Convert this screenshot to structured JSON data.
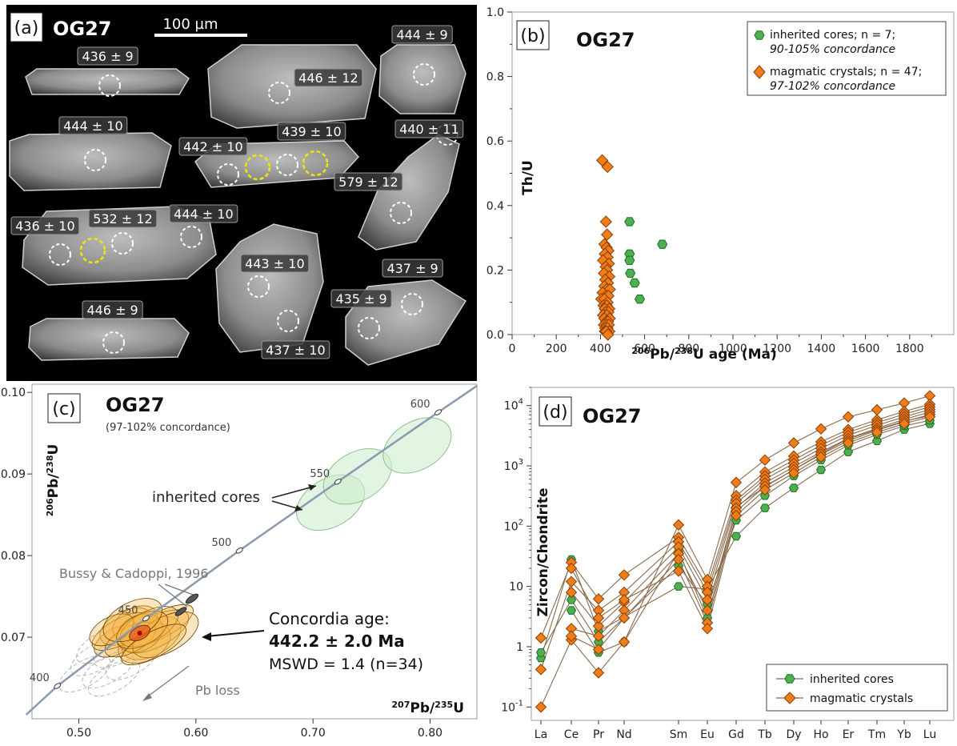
{
  "figure": {
    "panel_a": {
      "label": "(a)",
      "sample": "OG27",
      "scale_bar": "100 µm",
      "spot_labels": [
        "436 ± 9",
        "446 ± 12",
        "444 ± 9",
        "444 ± 10",
        "442 ± 10",
        "439 ± 10",
        "440 ± 11",
        "579 ± 12",
        "436 ± 10",
        "532 ± 12",
        "444 ± 10",
        "443 ± 10",
        "437 ± 9",
        "446 ± 9",
        "435 ± 9",
        "437 ± 10"
      ]
    },
    "panel_b": {
      "label": "(b)",
      "sample": "OG27",
      "legend": {
        "inherited_line1": "inherited cores; n = 7;",
        "inherited_line2": "90-105% concordance",
        "magmatic_line1": "magmatic crystals; n = 47;",
        "magmatic_line2": "97-102% concordance"
      }
    },
    "panel_c": {
      "label": "(c)",
      "sample": "OG27",
      "subtitle": "(97-102% concordance)",
      "annot_inherited": "inherited cores",
      "annot_bussy": "Bussy & Cadoppi, 1996",
      "concordia_title": "Concordia age:",
      "concordia_age": "442.2 ± 2.0 Ma",
      "mswd": "MSWD = 1.4 (n=34)",
      "pb_loss": "Pb loss"
    },
    "panel_d": {
      "label": "(d)",
      "sample": "OG27",
      "legend": {
        "inherited": "inherited cores",
        "magmatic": "magmatic crystals"
      }
    },
    "colors": {
      "inherited": "#4caf50",
      "magmatic": "#ef7d1a",
      "concordia": "#8a9bb0",
      "ree_line": "#8a6a4a"
    }
  },
  "chart_data": [
    {
      "type": "scatter",
      "panel": "b",
      "xlabel": "206Pb/238U age (Ma)",
      "ylabel": "Th/U",
      "xlim": [
        0,
        2000
      ],
      "ylim": [
        0,
        1.0
      ],
      "xticks": [
        0,
        200,
        400,
        600,
        800,
        1000,
        1200,
        1400,
        1600,
        1800
      ],
      "yticks": [
        0.0,
        0.2,
        0.4,
        0.6,
        0.8,
        1.0
      ],
      "series": [
        {
          "name": "inherited cores",
          "marker": "hexagon",
          "points": [
            [
              532,
              0.35
            ],
            [
              532,
              0.25
            ],
            [
              532,
              0.23
            ],
            [
              535,
              0.19
            ],
            [
              555,
              0.16
            ],
            [
              578,
              0.11
            ],
            [
              680,
              0.28
            ]
          ]
        },
        {
          "name": "magmatic crystals",
          "marker": "diamond",
          "points": [
            [
              408,
              0.54
            ],
            [
              432,
              0.52
            ],
            [
              425,
              0.35
            ],
            [
              430,
              0.31
            ],
            [
              418,
              0.28
            ],
            [
              428,
              0.27
            ],
            [
              436,
              0.26
            ],
            [
              420,
              0.25
            ],
            [
              432,
              0.24
            ],
            [
              412,
              0.23
            ],
            [
              438,
              0.22
            ],
            [
              424,
              0.21
            ],
            [
              430,
              0.2
            ],
            [
              416,
              0.19
            ],
            [
              440,
              0.18
            ],
            [
              422,
              0.17
            ],
            [
              434,
              0.16
            ],
            [
              418,
              0.15
            ],
            [
              428,
              0.14
            ],
            [
              442,
              0.14
            ],
            [
              410,
              0.13
            ],
            [
              426,
              0.12
            ],
            [
              436,
              0.12
            ],
            [
              404,
              0.11
            ],
            [
              418,
              0.11
            ],
            [
              432,
              0.1
            ],
            [
              414,
              0.09
            ],
            [
              428,
              0.09
            ],
            [
              440,
              0.08
            ],
            [
              420,
              0.08
            ],
            [
              424,
              0.07
            ],
            [
              436,
              0.07
            ],
            [
              412,
              0.06
            ],
            [
              430,
              0.06
            ],
            [
              418,
              0.05
            ],
            [
              442,
              0.05
            ],
            [
              426,
              0.04
            ],
            [
              434,
              0.04
            ],
            [
              416,
              0.03
            ],
            [
              428,
              0.03
            ],
            [
              438,
              0.03
            ],
            [
              422,
              0.02
            ],
            [
              432,
              0.02
            ],
            [
              420,
              0.01
            ],
            [
              440,
              0.01
            ],
            [
              426,
              0.01
            ],
            [
              434,
              0.0
            ]
          ]
        }
      ]
    },
    {
      "type": "scatter",
      "panel": "c",
      "xlabel": "207Pb/235U",
      "ylabel": "206Pb/238U",
      "xlim": [
        0.46,
        0.84
      ],
      "ylim": [
        0.06,
        0.101
      ],
      "xticks": [
        0.5,
        0.6,
        0.7,
        0.8
      ],
      "yticks": [
        0.07,
        0.08,
        0.09,
        0.1
      ],
      "concordia_ages": [
        400,
        450,
        500,
        550,
        600
      ],
      "concordia_points": [
        [
          0.4817,
          0.06402
        ],
        [
          0.5574,
          0.0723
        ],
        [
          0.6372,
          0.08062
        ],
        [
          0.7212,
          0.08905
        ],
        [
          0.8069,
          0.09756
        ]
      ],
      "inherited_ellipses": [
        [
          0.715,
          0.0865
        ],
        [
          0.738,
          0.0897
        ],
        [
          0.789,
          0.0935
        ]
      ]
    },
    {
      "type": "line",
      "panel": "d",
      "xlabel": "",
      "ylabel": "Zircon/Chondrite",
      "yscale": "log",
      "ylim": [
        0.1,
        20000
      ],
      "yticks": [
        "10^-1",
        "1",
        "10",
        "10^2",
        "10^3",
        "10^4"
      ],
      "categories": [
        "La",
        "Ce",
        "Pr",
        "Nd",
        "Sm",
        "Eu",
        "Gd",
        "Tb",
        "Dy",
        "Ho",
        "Er",
        "Tm",
        "Yb",
        "Lu"
      ],
      "series": [
        {
          "name": "inherited cores",
          "values": [
            0.65,
            28,
            1.8,
            null,
            10,
            9,
            68,
            200,
            430,
            860,
            1700,
            2600,
            4000,
            5000
          ]
        },
        {
          "name": "inherited cores",
          "values": [
            0.8,
            6,
            1.2,
            null,
            22,
            5,
            125,
            320,
            680,
            1250,
            2200,
            3300,
            4600,
            5700
          ]
        },
        {
          "name": "inherited cores",
          "values": [
            null,
            4,
            0.8,
            1.2,
            38,
            3,
            210,
            450,
            860,
            1600,
            2800,
            4000,
            5500,
            6800
          ]
        },
        {
          "name": "magmatic crystals",
          "values": [
            0.1,
            1.3,
            0.37,
            1.2,
            105,
            13,
            530,
            1250,
            2400,
            4100,
            6500,
            8500,
            11000,
            14500
          ]
        },
        {
          "name": "magmatic crystals",
          "values": [
            1.4,
            25,
            6.2,
            15.5,
            65,
            10,
            320,
            790,
            1450,
            2500,
            4000,
            5800,
            8000,
            10500
          ]
        },
        {
          "name": "magmatic crystals",
          "values": [
            0.42,
            12,
            4,
            8,
            55,
            8,
            270,
            680,
            1250,
            2200,
            3600,
            5200,
            7200,
            9500
          ]
        },
        {
          "name": "magmatic crystals",
          "values": [
            null,
            8,
            2.2,
            5.5,
            45,
            6,
            240,
            600,
            1100,
            1950,
            3200,
            4700,
            6500,
            8600
          ]
        },
        {
          "name": "magmatic crystals",
          "values": [
            null,
            2,
            1.5,
            4,
            35,
            4,
            200,
            520,
            960,
            1700,
            2850,
            4200,
            5900,
            7800
          ]
        },
        {
          "name": "magmatic crystals",
          "values": [
            null,
            1.5,
            0.9,
            3,
            28,
            2.5,
            175,
            460,
            860,
            1550,
            2600,
            3900,
            5400,
            7100
          ]
        },
        {
          "name": "magmatic crystals",
          "values": [
            null,
            20,
            3,
            6,
            18,
            2,
            150,
            400,
            760,
            1400,
            2400,
            3600,
            5000,
            6500
          ]
        }
      ]
    }
  ]
}
